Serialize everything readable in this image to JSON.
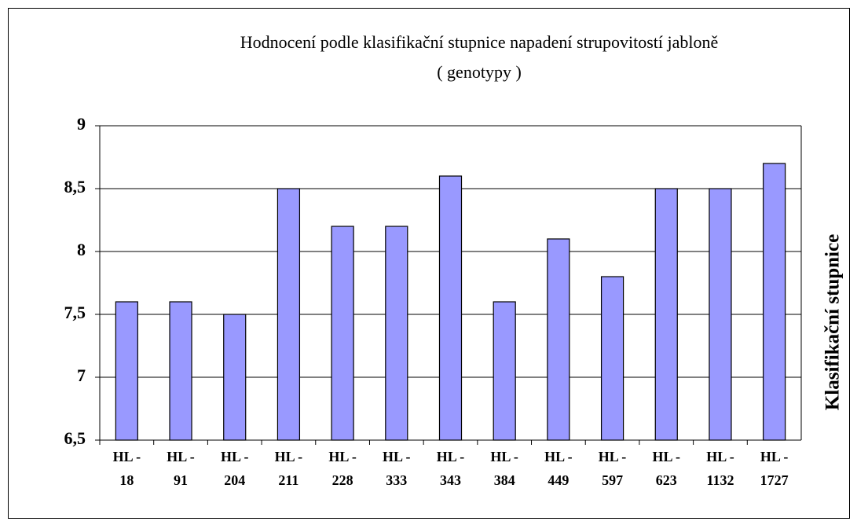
{
  "chart_data": {
    "type": "bar",
    "title": "Hodnocení podle klasifikační stupnice napadení strupovitostí jabloně",
    "subtitle": "( genotypy )",
    "y_label": "Klasifikační stupnice",
    "categories": [
      "HL - 18",
      "HL - 91",
      "HL - 204",
      "HL - 211",
      "HL - 228",
      "HL - 333",
      "HL - 343",
      "HL - 384",
      "HL - 449",
      "HL - 597",
      "HL - 623",
      "HL - 1132",
      "HL - 1727"
    ],
    "values": [
      7.6,
      7.6,
      7.5,
      8.5,
      8.2,
      8.2,
      8.6,
      7.6,
      8.1,
      7.8,
      8.5,
      8.5,
      8.7
    ],
    "color": "#9999ff",
    "ylim": [
      6.5,
      9
    ],
    "yticks": [
      {
        "value": 6.5,
        "label": "6,5"
      },
      7,
      {
        "value": 7.5,
        "label": "7,5"
      },
      8,
      {
        "value": 8.5,
        "label": "8,5"
      },
      9
    ],
    "grid": true
  }
}
